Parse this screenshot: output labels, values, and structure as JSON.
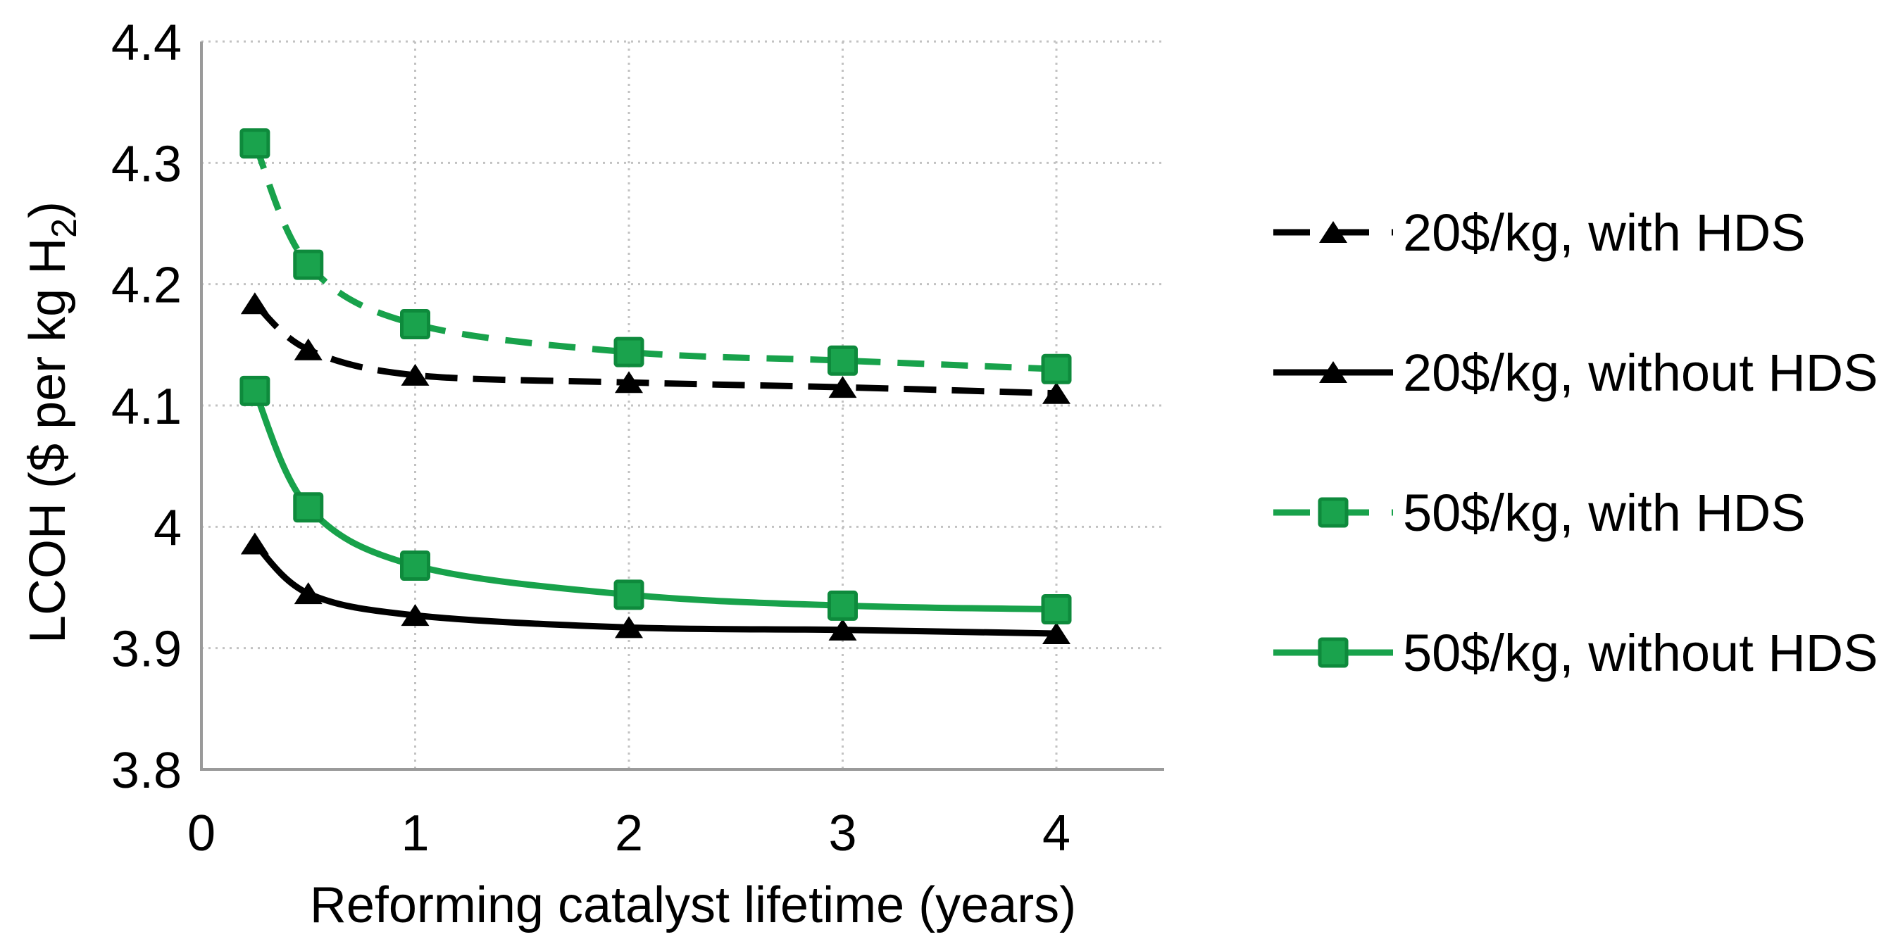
{
  "figure": {
    "background": "#ffffff"
  },
  "colors": {
    "green": "#18a24b",
    "green_fill": "#1aa34d",
    "green_border": "#0e8a3c",
    "black": "#000000",
    "gridline": "#c2c2c2",
    "axis": "#9a9a9a",
    "text": "#000000"
  },
  "chart_data": {
    "type": "line",
    "title": "",
    "xlabel": "Reforming catalyst lifetime (years)",
    "ylabel": "LCOH ($ per kg H₂)",
    "ylabel_parts": {
      "main": "LCOH ($ per kg H",
      "sub": "2",
      "close": ")"
    },
    "x": [
      0.25,
      0.5,
      1,
      2,
      3,
      4
    ],
    "xlim": [
      0,
      4.5
    ],
    "ylim": [
      3.8,
      4.4
    ],
    "xticks": [
      0,
      1,
      2,
      3,
      4
    ],
    "xtick_labels": [
      "0",
      "1",
      "2",
      "3",
      "4"
    ],
    "yticks": [
      3.8,
      3.9,
      4.0,
      4.1,
      4.2,
      4.3,
      4.4
    ],
    "ytick_labels": [
      "3.8",
      "3.9",
      "4",
      "4.1",
      "4.2",
      "4.3",
      "4.4"
    ],
    "grid": true,
    "legend_position": "right",
    "series": [
      {
        "name": "20$/kg, with HDS",
        "color": "#000000",
        "marker_fill": "#000000",
        "marker_border": "#000000",
        "dash": "dashed",
        "marker": "triangle",
        "values": [
          4.184,
          4.146,
          4.125,
          4.119,
          4.115,
          4.11
        ]
      },
      {
        "name": "20$/kg, without HDS",
        "color": "#000000",
        "marker_fill": "#000000",
        "marker_border": "#000000",
        "dash": "solid",
        "marker": "triangle",
        "values": [
          3.986,
          3.945,
          3.927,
          3.917,
          3.915,
          3.912
        ]
      },
      {
        "name": "50$/kg, with HDS",
        "color": "#18a24b",
        "marker_fill": "#1aa34d",
        "marker_border": "#0e8a3c",
        "dash": "dashed",
        "marker": "square",
        "values": [
          4.316,
          4.216,
          4.167,
          4.144,
          4.137,
          4.13
        ]
      },
      {
        "name": "50$/kg, without HDS",
        "color": "#18a24b",
        "marker_fill": "#1aa34d",
        "marker_border": "#0e8a3c",
        "dash": "solid",
        "marker": "square",
        "values": [
          4.112,
          4.016,
          3.968,
          3.944,
          3.935,
          3.932
        ]
      }
    ]
  }
}
